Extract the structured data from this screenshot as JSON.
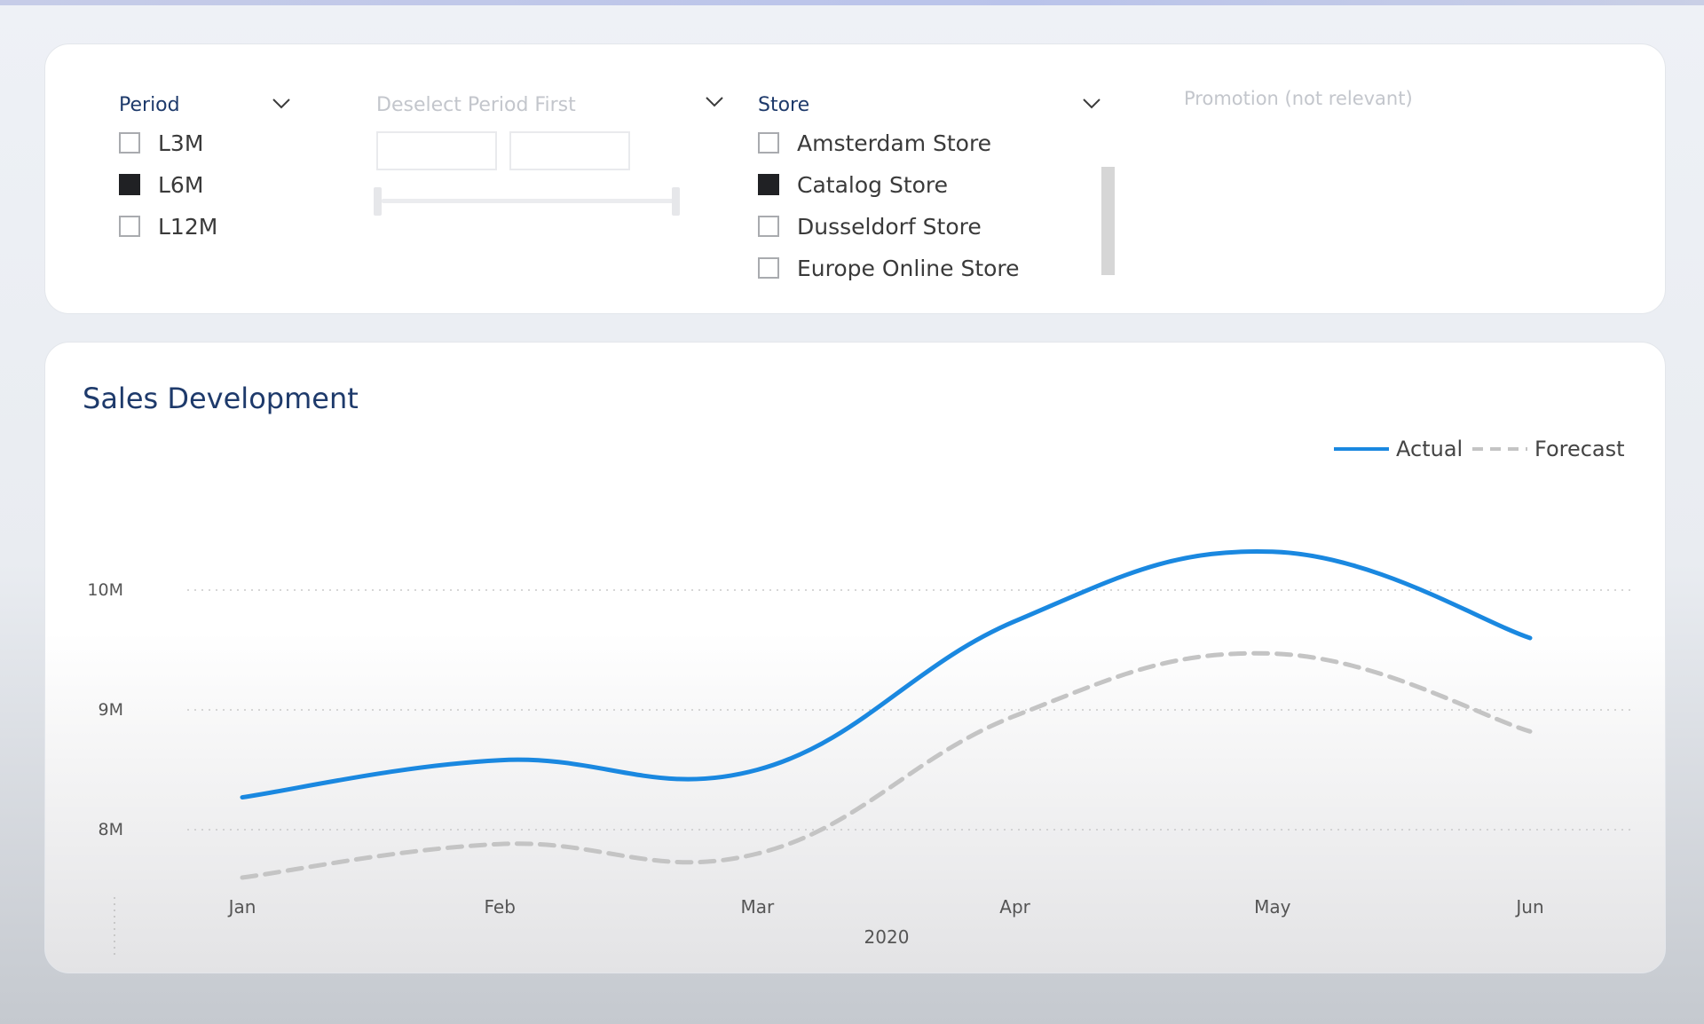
{
  "slicers": {
    "period": {
      "title": "Period",
      "options": [
        {
          "label": "L3M",
          "checked": false
        },
        {
          "label": "L6M",
          "checked": true
        },
        {
          "label": "L12M",
          "checked": false
        }
      ]
    },
    "deselect": {
      "title": "Deselect Period First"
    },
    "store": {
      "title": "Store",
      "options": [
        {
          "label": "Amsterdam Store",
          "checked": false
        },
        {
          "label": "Catalog Store",
          "checked": true
        },
        {
          "label": "Dusseldorf Store",
          "checked": false
        },
        {
          "label": "Europe Online Store",
          "checked": false
        }
      ]
    },
    "promotion": {
      "title": "Promotion (not relevant)"
    }
  },
  "icons": {
    "dropdown": "chevron-down-icon",
    "checkbox": "checkbox-icon"
  },
  "colors": {
    "actual": "#1a88e0",
    "forecast": "#c4c4c4",
    "title": "#1e3a6b"
  },
  "chart_data": {
    "type": "line",
    "title": "Sales Development",
    "xlabel": "2020",
    "ylabel": "",
    "categories": [
      "Jan",
      "Feb",
      "Mar",
      "Apr",
      "May",
      "Jun"
    ],
    "ylim": [
      7.4,
      11.4
    ],
    "yticks": [
      {
        "value": 8,
        "label": "8M"
      },
      {
        "value": 9,
        "label": "9M"
      },
      {
        "value": 10,
        "label": "10M"
      }
    ],
    "grid": true,
    "legend_position": "top-right",
    "series": [
      {
        "name": "Actual",
        "style": "solid",
        "values": [
          8.27,
          8.58,
          8.5,
          9.74,
          10.32,
          9.6
        ]
      },
      {
        "name": "Forecast",
        "style": "dashed",
        "values": [
          7.6,
          7.88,
          7.8,
          8.95,
          9.47,
          8.82
        ]
      }
    ]
  }
}
